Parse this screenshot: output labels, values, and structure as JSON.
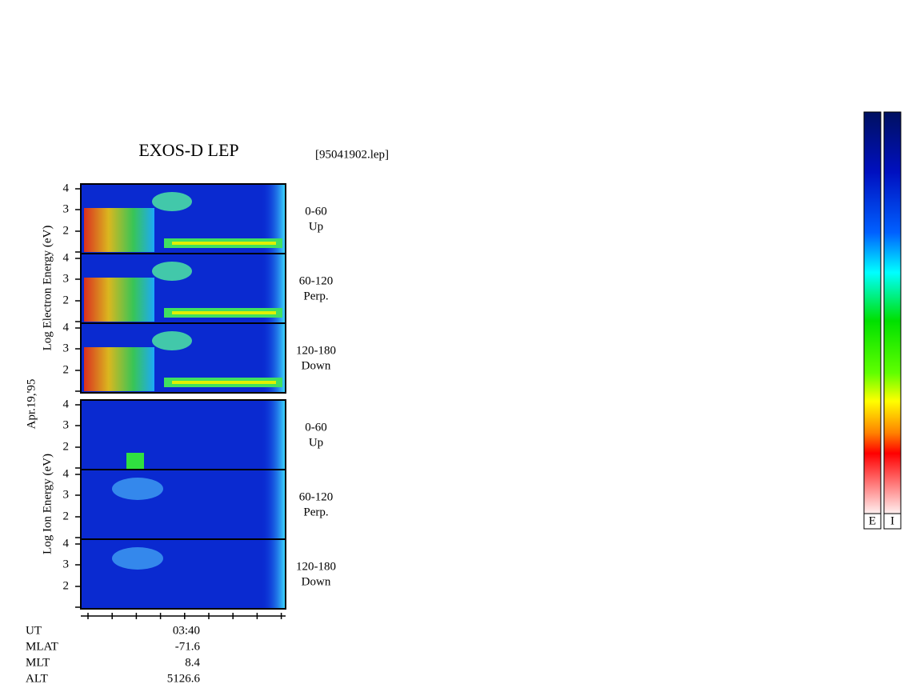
{
  "title": "EXOS-D LEP",
  "file": "[95041902.lep]",
  "date": "Apr.19,'95",
  "electron_axis_label": "Log  Electron  Energy (eV)",
  "ion_axis_label": "Log  Ion  Energy (eV)",
  "panels": [
    {
      "tick_labels": [
        "4",
        "3",
        "2"
      ],
      "angle": "0-60",
      "direction": "Up"
    },
    {
      "tick_labels": [
        "4",
        "3",
        "2"
      ],
      "angle": "60-120",
      "direction": "Perp."
    },
    {
      "tick_labels": [
        "4",
        "3",
        "2"
      ],
      "angle": "120-180",
      "direction": "Down"
    },
    {
      "tick_labels": [
        "4",
        "3",
        "2"
      ],
      "angle": "0-60",
      "direction": "Up"
    },
    {
      "tick_labels": [
        "4",
        "3",
        "2"
      ],
      "angle": "60-120",
      "direction": "Perp."
    },
    {
      "tick_labels": [
        "4",
        "3",
        "2"
      ],
      "angle": "120-180",
      "direction": "Down"
    }
  ],
  "footer": [
    {
      "label": "UT",
      "value": "03:40"
    },
    {
      "label": "MLAT",
      "value": "-71.6"
    },
    {
      "label": "MLT",
      "value": "8.4"
    },
    {
      "label": "ALT",
      "value": "5126.6"
    }
  ],
  "colorbars": [
    "E",
    "I"
  ]
}
